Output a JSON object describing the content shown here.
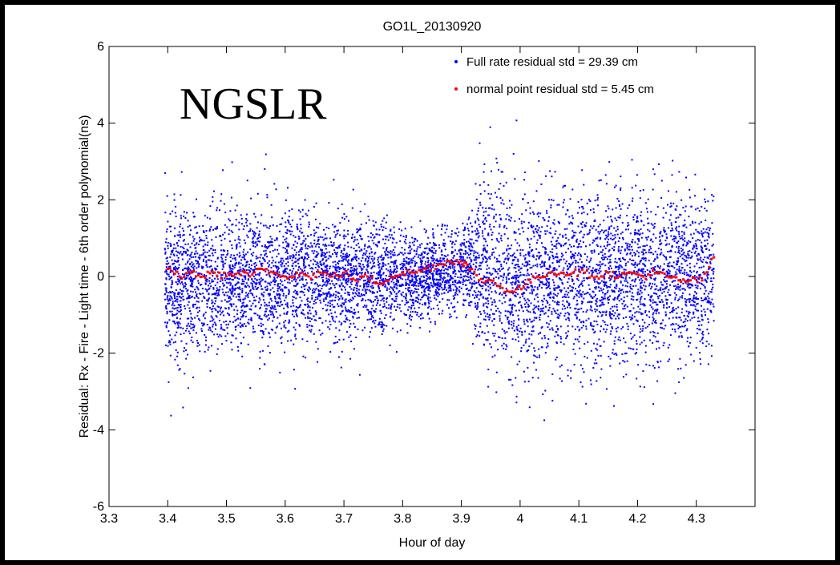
{
  "chart_data": {
    "type": "scatter",
    "title": "GO1L_20130920",
    "xlabel": "Hour of day",
    "ylabel": "Residual: Rx - Fire - Light time - 6th order polynomial(ns)",
    "xlim": [
      3.3,
      4.4
    ],
    "ylim": [
      -6,
      6
    ],
    "xticks": [
      "3.3",
      "3.4",
      "3.5",
      "3.6",
      "3.7",
      "3.8",
      "3.9",
      "4",
      "4.1",
      "4.2",
      "4.3"
    ],
    "yticks": [
      "-6",
      "-4",
      "-2",
      "0",
      "2",
      "4",
      "6"
    ],
    "grid": false,
    "legend_position": "top-right",
    "annotation": "NGSLR",
    "series": [
      {
        "name": "Full rate residual std =  29.39 cm",
        "color": "#0000ff",
        "marker": "dot",
        "x_range": [
          3.395,
          4.33
        ],
        "summary": [
          {
            "x": 3.4,
            "mean": -0.2,
            "spread": 1.8
          },
          {
            "x": 3.5,
            "mean": -0.1,
            "spread": 1.7
          },
          {
            "x": 3.6,
            "mean": 0.0,
            "spread": 1.6
          },
          {
            "x": 3.7,
            "mean": -0.1,
            "spread": 1.4
          },
          {
            "x": 3.8,
            "mean": -0.1,
            "spread": 1.1
          },
          {
            "x": 3.9,
            "mean": 0.2,
            "spread": 0.8
          },
          {
            "x": 3.93,
            "mean": 0.2,
            "spread": 1.9
          },
          {
            "x": 4.0,
            "mean": -0.1,
            "spread": 2.0
          },
          {
            "x": 4.1,
            "mean": -0.1,
            "spread": 2.0
          },
          {
            "x": 4.2,
            "mean": 0.0,
            "spread": 2.0
          },
          {
            "x": 4.33,
            "mean": 0.0,
            "spread": 1.8
          }
        ]
      },
      {
        "name": "normal point residual std =   5.45 cm",
        "color": "#ff0000",
        "marker": "dot",
        "points": [
          {
            "x": 3.4,
            "y": 0.2
          },
          {
            "x": 3.42,
            "y": 0.0
          },
          {
            "x": 3.44,
            "y": 0.1
          },
          {
            "x": 3.46,
            "y": 0.0
          },
          {
            "x": 3.48,
            "y": 0.1
          },
          {
            "x": 3.5,
            "y": 0.0
          },
          {
            "x": 3.52,
            "y": 0.1
          },
          {
            "x": 3.54,
            "y": 0.0
          },
          {
            "x": 3.56,
            "y": 0.2
          },
          {
            "x": 3.58,
            "y": 0.1
          },
          {
            "x": 3.6,
            "y": 0.0
          },
          {
            "x": 3.62,
            "y": 0.1
          },
          {
            "x": 3.64,
            "y": 0.0
          },
          {
            "x": 3.66,
            "y": 0.1
          },
          {
            "x": 3.68,
            "y": 0.0
          },
          {
            "x": 3.7,
            "y": 0.1
          },
          {
            "x": 3.72,
            "y": -0.1
          },
          {
            "x": 3.74,
            "y": 0.0
          },
          {
            "x": 3.76,
            "y": -0.2
          },
          {
            "x": 3.78,
            "y": 0.0
          },
          {
            "x": 3.8,
            "y": 0.1
          },
          {
            "x": 3.82,
            "y": 0.1
          },
          {
            "x": 3.84,
            "y": 0.2
          },
          {
            "x": 3.86,
            "y": 0.3
          },
          {
            "x": 3.88,
            "y": 0.4
          },
          {
            "x": 3.9,
            "y": 0.4
          },
          {
            "x": 3.91,
            "y": 0.3
          },
          {
            "x": 3.93,
            "y": -0.1
          },
          {
            "x": 3.95,
            "y": -0.1
          },
          {
            "x": 3.97,
            "y": -0.3
          },
          {
            "x": 3.99,
            "y": -0.4
          },
          {
            "x": 4.01,
            "y": -0.2
          },
          {
            "x": 4.03,
            "y": 0.0
          },
          {
            "x": 4.05,
            "y": 0.1
          },
          {
            "x": 4.07,
            "y": 0.1
          },
          {
            "x": 4.09,
            "y": 0.1
          },
          {
            "x": 4.11,
            "y": 0.1
          },
          {
            "x": 4.13,
            "y": 0.0
          },
          {
            "x": 4.15,
            "y": 0.1
          },
          {
            "x": 4.17,
            "y": 0.0
          },
          {
            "x": 4.19,
            "y": 0.1
          },
          {
            "x": 4.21,
            "y": 0.0
          },
          {
            "x": 4.23,
            "y": 0.1
          },
          {
            "x": 4.25,
            "y": 0.0
          },
          {
            "x": 4.27,
            "y": -0.1
          },
          {
            "x": 4.29,
            "y": -0.1
          },
          {
            "x": 4.31,
            "y": -0.1
          },
          {
            "x": 4.33,
            "y": 0.5
          }
        ]
      }
    ]
  }
}
